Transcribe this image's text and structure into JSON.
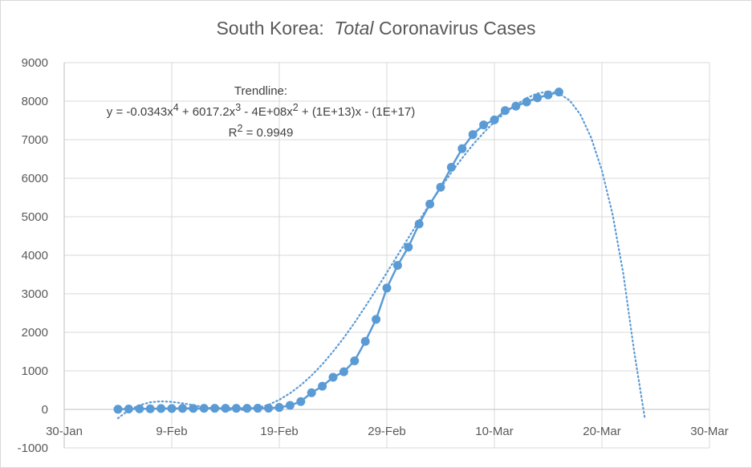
{
  "chart_data": {
    "type": "line",
    "title_part1": "South Korea:",
    "title_italic": "Total",
    "title_part2": "Coronavirus Cases",
    "xlabel": "",
    "ylabel": "",
    "x_ticks": [
      "30-Jan",
      "9-Feb",
      "19-Feb",
      "29-Feb",
      "10-Mar",
      "20-Mar",
      "30-Mar"
    ],
    "xlim_days": [
      0,
      60
    ],
    "ylim": [
      -1000,
      9000
    ],
    "y_ticks": [
      -1000,
      0,
      1000,
      2000,
      3000,
      4000,
      5000,
      6000,
      7000,
      8000,
      9000
    ],
    "grid": true,
    "legend": "none",
    "series": [
      {
        "kind": "data",
        "color": "#5b9bd5",
        "points": [
          [
            5,
            4
          ],
          [
            6,
            11
          ],
          [
            7,
            15
          ],
          [
            8,
            16
          ],
          [
            9,
            23
          ],
          [
            10,
            24
          ],
          [
            11,
            27
          ],
          [
            12,
            27
          ],
          [
            13,
            28
          ],
          [
            14,
            28
          ],
          [
            15,
            28
          ],
          [
            16,
            28
          ],
          [
            17,
            29
          ],
          [
            18,
            30
          ],
          [
            19,
            31
          ],
          [
            20,
            51
          ],
          [
            21,
            104
          ],
          [
            22,
            204
          ],
          [
            23,
            433
          ],
          [
            24,
            602
          ],
          [
            25,
            833
          ],
          [
            26,
            977
          ],
          [
            27,
            1261
          ],
          [
            28,
            1766
          ],
          [
            29,
            2337
          ],
          [
            30,
            3150
          ],
          [
            31,
            3736
          ],
          [
            32,
            4212
          ],
          [
            33,
            4812
          ],
          [
            34,
            5328
          ],
          [
            35,
            5766
          ],
          [
            36,
            6284
          ],
          [
            37,
            6767
          ],
          [
            38,
            7134
          ],
          [
            39,
            7382
          ],
          [
            40,
            7513
          ],
          [
            41,
            7755
          ],
          [
            42,
            7869
          ],
          [
            43,
            7979
          ],
          [
            44,
            8086
          ],
          [
            45,
            8162
          ],
          [
            46,
            8236
          ]
        ]
      },
      {
        "kind": "trendline",
        "style": "dotted",
        "color": "#5b9bd5",
        "points": [
          [
            5,
            -230
          ],
          [
            6,
            -20
          ],
          [
            7,
            110
          ],
          [
            8,
            185
          ],
          [
            9,
            210
          ],
          [
            10,
            195
          ],
          [
            11,
            160
          ],
          [
            12,
            110
          ],
          [
            13,
            60
          ],
          [
            14,
            20
          ],
          [
            15,
            -10
          ],
          [
            16,
            -20
          ],
          [
            17,
            -5
          ],
          [
            18,
            40
          ],
          [
            19,
            120
          ],
          [
            20,
            250
          ],
          [
            21,
            420
          ],
          [
            22,
            630
          ],
          [
            23,
            880
          ],
          [
            24,
            1170
          ],
          [
            25,
            1500
          ],
          [
            26,
            1860
          ],
          [
            27,
            2250
          ],
          [
            28,
            2670
          ],
          [
            29,
            3100
          ],
          [
            30,
            3550
          ],
          [
            31,
            4000
          ],
          [
            32,
            4450
          ],
          [
            33,
            4900
          ],
          [
            34,
            5330
          ],
          [
            35,
            5750
          ],
          [
            36,
            6150
          ],
          [
            37,
            6520
          ],
          [
            38,
            6870
          ],
          [
            39,
            7180
          ],
          [
            40,
            7460
          ],
          [
            41,
            7700
          ],
          [
            42,
            7900
          ],
          [
            43,
            8080
          ],
          [
            44,
            8200
          ],
          [
            45,
            8250
          ],
          [
            46,
            8200
          ],
          [
            47,
            8020
          ],
          [
            48,
            7650
          ],
          [
            49,
            7050
          ],
          [
            50,
            6200
          ],
          [
            51,
            5050
          ],
          [
            52,
            3500
          ],
          [
            53,
            1500
          ],
          [
            54,
            -250
          ]
        ]
      }
    ],
    "annotation": {
      "label": "Trendline:",
      "eq_a": "y = -0.0343x",
      "eq_a_sup": "4",
      "eq_b": " + 6017.2x",
      "eq_b_sup": "3",
      "eq_c": " - 4E+08x",
      "eq_c_sup": "2",
      "eq_d": " + (1E+13)x - (1E+17)",
      "r2_a": "R",
      "r2_sup": "2",
      "r2_b": " = 0.9949"
    }
  }
}
